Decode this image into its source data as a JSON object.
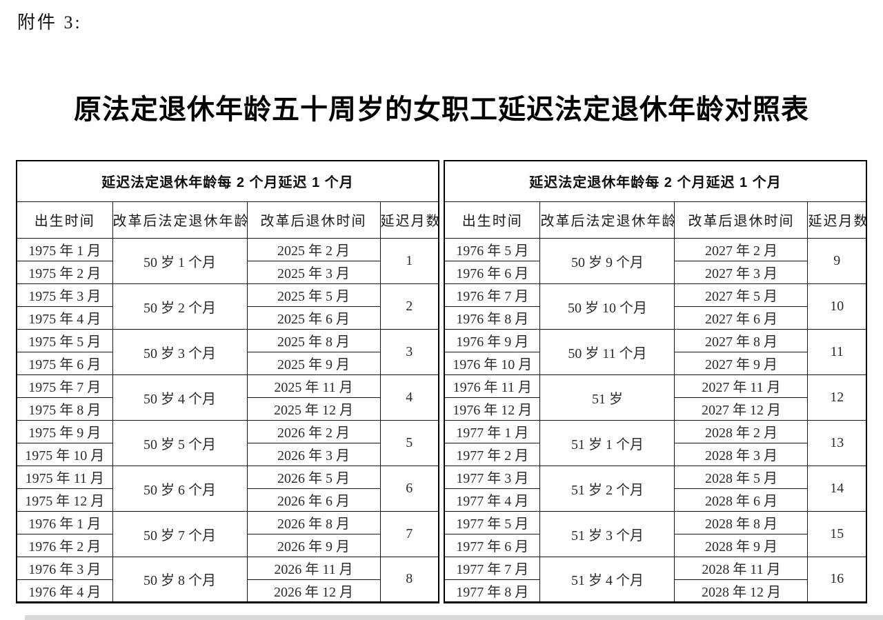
{
  "attachment_label": "附件 3:",
  "title": "原法定退休年龄五十周岁的女职工延迟法定退休年龄对照表",
  "tables": [
    {
      "group_header": "延迟法定退休年龄每 2 个月延迟 1 个月",
      "columns": [
        "出生时间",
        "改革后法定退休年龄",
        "改革后退休时间",
        "延迟月数"
      ],
      "groups": [
        {
          "birth": [
            "1975 年 1 月",
            "1975 年 2 月"
          ],
          "new_age": "50 岁 1 个月",
          "retire": [
            "2025 年 2 月",
            "2025 年 3 月"
          ],
          "delay_months": "1"
        },
        {
          "birth": [
            "1975 年 3 月",
            "1975 年 4 月"
          ],
          "new_age": "50 岁 2 个月",
          "retire": [
            "2025 年 5 月",
            "2025 年 6 月"
          ],
          "delay_months": "2"
        },
        {
          "birth": [
            "1975 年 5 月",
            "1975 年 6 月"
          ],
          "new_age": "50 岁 3 个月",
          "retire": [
            "2025 年 8 月",
            "2025 年 9 月"
          ],
          "delay_months": "3"
        },
        {
          "birth": [
            "1975 年 7 月",
            "1975 年 8 月"
          ],
          "new_age": "50 岁 4 个月",
          "retire": [
            "2025 年 11 月",
            "2025 年 12 月"
          ],
          "delay_months": "4"
        },
        {
          "birth": [
            "1975 年 9 月",
            "1975 年 10 月"
          ],
          "new_age": "50 岁 5 个月",
          "retire": [
            "2026 年 2 月",
            "2026 年 3 月"
          ],
          "delay_months": "5"
        },
        {
          "birth": [
            "1975 年 11 月",
            "1975 年 12 月"
          ],
          "new_age": "50 岁 6 个月",
          "retire": [
            "2026 年 5 月",
            "2026 年 6 月"
          ],
          "delay_months": "6"
        },
        {
          "birth": [
            "1976 年 1 月",
            "1976 年 2 月"
          ],
          "new_age": "50 岁 7 个月",
          "retire": [
            "2026 年 8 月",
            "2026 年 9 月"
          ],
          "delay_months": "7"
        },
        {
          "birth": [
            "1976 年 3 月",
            "1976 年 4 月"
          ],
          "new_age": "50 岁 8 个月",
          "retire": [
            "2026 年 11 月",
            "2026 年 12 月"
          ],
          "delay_months": "8"
        }
      ]
    },
    {
      "group_header": "延迟法定退休年龄每 2 个月延迟 1 个月",
      "columns": [
        "出生时间",
        "改革后法定退休年龄",
        "改革后退休时间",
        "延迟月数"
      ],
      "groups": [
        {
          "birth": [
            "1976 年 5 月",
            "1976 年 6 月"
          ],
          "new_age": "50 岁 9 个月",
          "retire": [
            "2027 年 2 月",
            "2027 年 3 月"
          ],
          "delay_months": "9"
        },
        {
          "birth": [
            "1976 年 7 月",
            "1976 年 8 月"
          ],
          "new_age": "50 岁 10 个月",
          "retire": [
            "2027 年 5 月",
            "2027 年 6 月"
          ],
          "delay_months": "10"
        },
        {
          "birth": [
            "1976 年 9 月",
            "1976 年 10 月"
          ],
          "new_age": "50 岁 11 个月",
          "retire": [
            "2027 年 8 月",
            "2027 年 9 月"
          ],
          "delay_months": "11"
        },
        {
          "birth": [
            "1976 年 11 月",
            "1976 年 12 月"
          ],
          "new_age": "51 岁",
          "retire": [
            "2027 年 11 月",
            "2027 年 12 月"
          ],
          "delay_months": "12"
        },
        {
          "birth": [
            "1977 年 1 月",
            "1977 年 2 月"
          ],
          "new_age": "51 岁 1 个月",
          "retire": [
            "2028 年 2 月",
            "2028 年 3 月"
          ],
          "delay_months": "13"
        },
        {
          "birth": [
            "1977 年 3 月",
            "1977 年 4 月"
          ],
          "new_age": "51 岁 2 个月",
          "retire": [
            "2028 年 5 月",
            "2028 年 6 月"
          ],
          "delay_months": "14"
        },
        {
          "birth": [
            "1977 年 5 月",
            "1977 年 6 月"
          ],
          "new_age": "51 岁 3 个月",
          "retire": [
            "2028 年 8 月",
            "2028 年 9 月"
          ],
          "delay_months": "15"
        },
        {
          "birth": [
            "1977 年 7 月",
            "1977 年 8 月"
          ],
          "new_age": "51 岁 4 个月",
          "retire": [
            "2028 年 11 月",
            "2028 年 12 月"
          ],
          "delay_months": "16"
        }
      ]
    }
  ]
}
